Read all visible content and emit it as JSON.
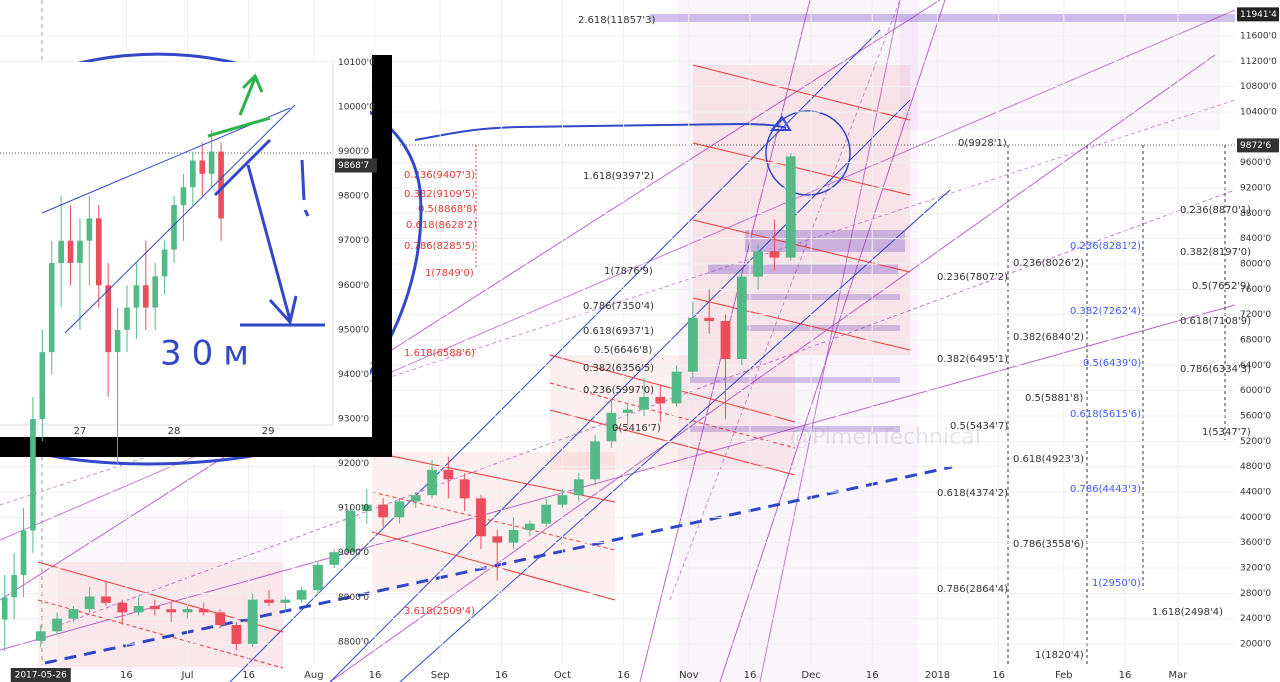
{
  "chart_data": [
    {
      "type": "candlestick",
      "x": [
        "2017-05-26",
        "2017-05-30",
        "2017-06-03",
        "2017-06-07",
        "2017-06-11",
        "2017-06-15",
        "2017-06-19",
        "2017-06-23",
        "2017-06-27",
        "2017-07-01",
        "2017-07-05",
        "2017-07-09",
        "2017-07-13",
        "2017-07-17",
        "2017-07-21",
        "2017-07-25",
        "2017-07-29",
        "2017-08-02",
        "2017-08-06",
        "2017-08-10",
        "2017-08-14",
        "2017-08-18",
        "2017-08-22",
        "2017-08-26",
        "2017-08-30",
        "2017-09-03",
        "2017-09-07",
        "2017-09-11",
        "2017-09-15",
        "2017-09-19",
        "2017-09-23",
        "2017-09-27",
        "2017-10-01",
        "2017-10-05",
        "2017-10-09",
        "2017-10-13",
        "2017-10-17",
        "2017-10-21",
        "2017-10-25",
        "2017-10-29",
        "2017-11-02",
        "2017-11-06",
        "2017-11-10",
        "2017-11-14",
        "2017-11-18",
        "2017-11-22",
        "2017-11-26"
      ],
      "open": [
        2050,
        2200,
        2400,
        2550,
        2750,
        2650,
        2500,
        2600,
        2550,
        2500,
        2550,
        2500,
        2300,
        2000,
        2700,
        2650,
        2700,
        2850,
        3250,
        3450,
        4100,
        4200,
        4000,
        4250,
        4350,
        4750,
        4600,
        4300,
        3700,
        3600,
        3800,
        3900,
        4200,
        4350,
        4600,
        5200,
        5650,
        5700,
        5900,
        5800,
        6300,
        7150,
        7100,
        6500,
        7800,
        8200,
        8100
      ],
      "high": [
        2300,
        2500,
        2600,
        2900,
        3000,
        2700,
        2750,
        2700,
        2650,
        2600,
        2650,
        2550,
        2350,
        2800,
        2850,
        2750,
        2900,
        3300,
        3500,
        4200,
        4450,
        4300,
        4300,
        4400,
        4900,
        4950,
        4700,
        4350,
        3800,
        4000,
        3950,
        4300,
        4450,
        4700,
        5300,
        5850,
        5800,
        6200,
        6100,
        6400,
        7400,
        7600,
        7200,
        7900,
        8300,
        8700,
        9750
      ],
      "low": [
        1950,
        2150,
        2350,
        2500,
        2600,
        2300,
        2450,
        2450,
        2350,
        2400,
        2450,
        2250,
        1900,
        1950,
        2600,
        2500,
        2650,
        2800,
        3200,
        3400,
        3900,
        3850,
        3900,
        4150,
        4300,
        4300,
        4100,
        3500,
        3000,
        3500,
        3700,
        3850,
        4150,
        4250,
        4500,
        5100,
        5450,
        5600,
        5500,
        5750,
        6200,
        6900,
        5550,
        6400,
        7600,
        7900,
        8050
      ],
      "close": [
        2200,
        2400,
        2550,
        2750,
        2650,
        2500,
        2600,
        2550,
        2500,
        2550,
        2500,
        2300,
        2000,
        2700,
        2650,
        2700,
        2850,
        3250,
        3450,
        4100,
        4200,
        4000,
        4250,
        4350,
        4750,
        4600,
        4300,
        3700,
        3600,
        3800,
        3900,
        4200,
        4350,
        4600,
        5200,
        5650,
        5700,
        5900,
        5800,
        6300,
        7150,
        7100,
        6500,
        7800,
        8200,
        8100,
        9700
      ],
      "up_color": "#53b987",
      "down_color": "#eb4d5c",
      "xlim": [
        "2017-05-16",
        "2018-03-15"
      ],
      "ylim": [
        1400,
        12168
      ],
      "xticks": [
        {
          "value": "2017-06-16",
          "label": "16"
        },
        {
          "value": "2017-07-01",
          "label": "Jul"
        },
        {
          "value": "2017-07-16",
          "label": "16"
        },
        {
          "value": "2017-08-01",
          "label": "Aug"
        },
        {
          "value": "2017-08-16",
          "label": "16"
        },
        {
          "value": "2017-09-01",
          "label": "Sep"
        },
        {
          "value": "2017-09-16",
          "label": "16"
        },
        {
          "value": "2017-10-01",
          "label": "Oct"
        },
        {
          "value": "2017-10-16",
          "label": "16"
        },
        {
          "value": "2017-11-01",
          "label": "Nov"
        },
        {
          "value": "2017-11-16",
          "label": "16"
        },
        {
          "value": "2017-12-01",
          "label": "Dec"
        },
        {
          "value": "2017-12-16",
          "label": "16"
        },
        {
          "value": "2018-01-01",
          "label": "2018"
        },
        {
          "value": "2018-01-16",
          "label": "16"
        },
        {
          "value": "2018-02-01",
          "label": "Feb"
        },
        {
          "value": "2018-02-16",
          "label": "16"
        },
        {
          "value": "2018-03-01",
          "label": "Mar"
        }
      ],
      "yticks": [
        {
          "value": 11600,
          "label": "11600'0"
        },
        {
          "value": 11200,
          "label": "11200'0"
        },
        {
          "value": 10800,
          "label": "10800'0"
        },
        {
          "value": 10400,
          "label": "10400'0"
        },
        {
          "value": 9600,
          "label": "9600'0"
        },
        {
          "value": 9200,
          "label": "9200'0"
        },
        {
          "value": 8800,
          "label": "8800'0"
        },
        {
          "value": 8400,
          "label": "8400'0"
        },
        {
          "value": 8000,
          "label": "8000'0"
        },
        {
          "value": 7600,
          "label": "7600'0"
        },
        {
          "value": 7200,
          "label": "7200'0"
        },
        {
          "value": 6800,
          "label": "6800'0"
        },
        {
          "value": 6400,
          "label": "6400'0"
        },
        {
          "value": 6000,
          "label": "6000'0"
        },
        {
          "value": 5600,
          "label": "5600'0"
        },
        {
          "value": 5200,
          "label": "5200'0"
        },
        {
          "value": 4800,
          "label": "4800'0"
        },
        {
          "value": 4400,
          "label": "4400'0"
        },
        {
          "value": 4000,
          "label": "4000'0"
        },
        {
          "value": 3600,
          "label": "3600'0"
        },
        {
          "value": 3200,
          "label": "3200'0"
        },
        {
          "value": 2800,
          "label": "2800'0"
        },
        {
          "value": 2400,
          "label": "2400'0"
        },
        {
          "value": 2000,
          "label": "2000'0"
        }
      ],
      "price_markers": [
        {
          "value": 11941.4,
          "label": "11941'4"
        },
        {
          "value": 9872.6,
          "label": "9872'6"
        }
      ],
      "x_marker": "2017-05-26",
      "grid": true,
      "watermark": "@PimenTechnical",
      "annotations": [
        {
          "text": "2.618(11857'3)",
          "color": "#333"
        },
        {
          "text": "0(9928'1)",
          "color": "#333"
        },
        {
          "text": "1.618(9397'2)",
          "color": "#333"
        },
        {
          "text": "0.236(9407'3)",
          "color": "#e53935"
        },
        {
          "text": "0.382(9109'5)",
          "color": "#e53935"
        },
        {
          "text": "0.5(8868'8)",
          "color": "#e53935"
        },
        {
          "text": "0.618(8628'2)",
          "color": "#e53935"
        },
        {
          "text": "0.786(8285'5)",
          "color": "#e53935"
        },
        {
          "text": "1(7849'0)",
          "color": "#e53935"
        },
        {
          "text": "1(7876'9)",
          "color": "#333"
        },
        {
          "text": "0.786(7350'4)",
          "color": "#333"
        },
        {
          "text": "0.618(6937'1)",
          "color": "#333"
        },
        {
          "text": "0.5(6646'8)",
          "color": "#333"
        },
        {
          "text": "0.382(6356'5)",
          "color": "#333"
        },
        {
          "text": "0.236(5997'0)",
          "color": "#333"
        },
        {
          "text": "0(5416'7)",
          "color": "#333"
        },
        {
          "text": "1.618(6588'6)",
          "color": "#e53935"
        },
        {
          "text": "3.618(2509'4)",
          "color": "#e53935"
        },
        {
          "text": "0.236(8870'1)",
          "color": "#333"
        },
        {
          "text": "0.236(8281'2)",
          "color": "#3d5afe"
        },
        {
          "text": "0.382(8197'0)",
          "color": "#333"
        },
        {
          "text": "0.236(8026'2)",
          "color": "#333"
        },
        {
          "text": "0.236(7807'2)",
          "color": "#333"
        },
        {
          "text": "0.5(7652'9)",
          "color": "#333"
        },
        {
          "text": "0.382(7262'4)",
          "color": "#3d5afe"
        },
        {
          "text": "0.618(7108'9)",
          "color": "#333"
        },
        {
          "text": "0.382(6840'2)",
          "color": "#333"
        },
        {
          "text": "0.382(6495'1)",
          "color": "#333"
        },
        {
          "text": "0.5(6439'0)",
          "color": "#3d5afe"
        },
        {
          "text": "0.786(6334'3)",
          "color": "#333"
        },
        {
          "text": "0.5(5881'8)",
          "color": "#333"
        },
        {
          "text": "0.618(5615'6)",
          "color": "#3d5afe"
        },
        {
          "text": "0.5(5434'7)",
          "color": "#333"
        },
        {
          "text": "1(5347'7)",
          "color": "#333"
        },
        {
          "text": "0.618(4923'3)",
          "color": "#333"
        },
        {
          "text": "0.618(4374'2)",
          "color": "#333"
        },
        {
          "text": "0.786(4443'3)",
          "color": "#3d5afe"
        },
        {
          "text": "0.786(3558'6)",
          "color": "#333"
        },
        {
          "text": "1(2950'0)",
          "color": "#3d5afe"
        },
        {
          "text": "0.786(2864'4)",
          "color": "#333"
        },
        {
          "text": "1.618(2498'4)",
          "color": "#333"
        },
        {
          "text": "1(1820'4)",
          "color": "#333"
        }
      ]
    },
    {
      "type": "candlestick",
      "x": [
        26.2,
        26.3,
        26.4,
        26.5,
        26.6,
        26.7,
        26.8,
        26.9,
        27.0,
        27.1,
        27.2,
        27.3,
        27.4,
        27.5,
        27.6,
        27.7,
        27.8,
        27.9,
        28.0,
        28.1,
        28.2,
        28.3,
        28.4,
        28.5
      ],
      "open": [
        8850,
        8900,
        8950,
        9050,
        9300,
        9450,
        9650,
        9700,
        9650,
        9700,
        9750,
        9600,
        9450,
        9500,
        9550,
        9600,
        9550,
        9620,
        9680,
        9780,
        9820,
        9880,
        9850,
        9900
      ],
      "high": [
        8950,
        9000,
        9100,
        9350,
        9500,
        9700,
        9800,
        9780,
        9750,
        9800,
        9780,
        9650,
        9550,
        9600,
        9650,
        9700,
        9650,
        9700,
        9800,
        9850,
        9900,
        9920,
        9950,
        9920
      ],
      "low": [
        8780,
        8850,
        8900,
        9000,
        9250,
        9400,
        9550,
        9600,
        9500,
        9600,
        9550,
        9350,
        9200,
        9450,
        9480,
        9500,
        9500,
        9580,
        9650,
        9700,
        9780,
        9800,
        9820,
        9700
      ],
      "close": [
        8900,
        8950,
        9050,
        9300,
        9450,
        9650,
        9700,
        9650,
        9700,
        9750,
        9600,
        9450,
        9500,
        9550,
        9600,
        9550,
        9620,
        9680,
        9780,
        9820,
        9880,
        9850,
        9900,
        9750
      ],
      "up_color": "#53b987",
      "down_color": "#eb4d5c",
      "xlim": [
        26.15,
        29.69
      ],
      "ylim": [
        8710,
        10240
      ],
      "xticks": [
        27,
        28,
        29
      ],
      "yticks": [
        {
          "value": 10100,
          "label": "10100'0"
        },
        {
          "value": 10000,
          "label": "10000'0"
        },
        {
          "value": 9900,
          "label": "9900'0"
        },
        {
          "value": 9800,
          "label": "9800'0"
        },
        {
          "value": 9700,
          "label": "9700'0"
        },
        {
          "value": 9600,
          "label": "9600'0"
        },
        {
          "value": 9500,
          "label": "9500'0"
        },
        {
          "value": 9400,
          "label": "9400'0"
        },
        {
          "value": 9300,
          "label": "9300'0"
        },
        {
          "value": 9200,
          "label": "9200'0"
        },
        {
          "value": 9100,
          "label": "9100'0"
        },
        {
          "value": 9000,
          "label": "9000'0"
        },
        {
          "value": 8900,
          "label": "8900'0"
        },
        {
          "value": 8800,
          "label": "8800'0"
        }
      ],
      "price_markers": [
        {
          "value": 9868.7,
          "label": "9868'7"
        }
      ],
      "grid": false,
      "annotation": "30м"
    }
  ]
}
